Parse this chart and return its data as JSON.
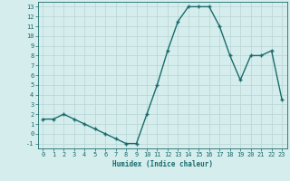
{
  "x": [
    0,
    1,
    2,
    3,
    4,
    5,
    6,
    7,
    8,
    9,
    10,
    11,
    12,
    13,
    14,
    15,
    16,
    17,
    18,
    19,
    20,
    21,
    22,
    23
  ],
  "y": [
    1.5,
    1.5,
    2,
    1.5,
    1,
    0.5,
    0,
    -0.5,
    -1,
    -1,
    2,
    5,
    8.5,
    11.5,
    13,
    13,
    13,
    11,
    8,
    5.5,
    8,
    8,
    8.5,
    3.5
  ],
  "xlabel": "Humidex (Indice chaleur)",
  "ylabel": "",
  "xlim": [
    -0.5,
    23.5
  ],
  "ylim": [
    -1.5,
    13.5
  ],
  "yticks": [
    -1,
    0,
    1,
    2,
    3,
    4,
    5,
    6,
    7,
    8,
    9,
    10,
    11,
    12,
    13
  ],
  "xticks": [
    0,
    1,
    2,
    3,
    4,
    5,
    6,
    7,
    8,
    9,
    10,
    11,
    12,
    13,
    14,
    15,
    16,
    17,
    18,
    19,
    20,
    21,
    22,
    23
  ],
  "line_color": "#1a6b6b",
  "marker": "+",
  "marker_size": 3.5,
  "bg_color": "#d5eded",
  "grid_color": "#b8d4d4",
  "axis_color": "#1a6b6b",
  "font_color": "#1a6b6b",
  "xlabel_fontsize": 5.5,
  "tick_fontsize": 5,
  "linewidth": 1.0
}
